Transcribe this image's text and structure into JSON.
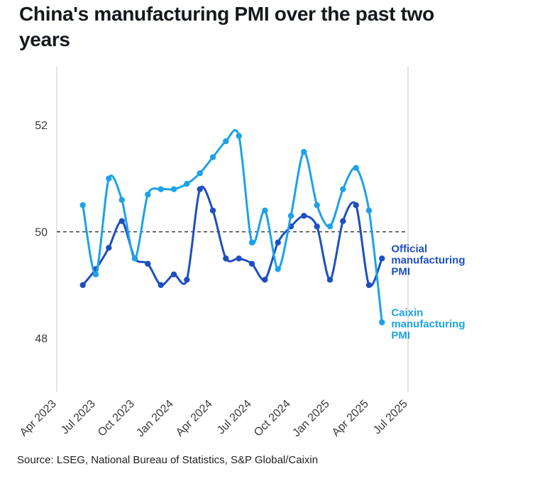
{
  "title": "China's manufacturing PMI over the past two years",
  "source": "Source: LSEG, National Bureau of Statistics, S&P Global/Caixin",
  "chart_data": {
    "type": "line",
    "title": "China's manufacturing PMI over the past two years",
    "grid": "off",
    "legend_position": "end-of-line-labels",
    "reference_line": 50,
    "x_axis": {
      "tick_labels": [
        "Apr 2023",
        "Jul 2023",
        "Oct 2023",
        "Jan 2024",
        "Apr 2024",
        "Jul 2024",
        "Oct 2024",
        "Jan 2025",
        "Apr 2025",
        "Jul 2025"
      ],
      "tick_interval_months": 3,
      "months_span": 27
    },
    "y_axis": {
      "ticks": [
        48,
        50,
        52
      ],
      "range": [
        47.0,
        53.1
      ]
    },
    "x_months": [
      "Jun 2023",
      "Jul 2023",
      "Aug 2023",
      "Sep 2023",
      "Oct 2023",
      "Nov 2023",
      "Dec 2023",
      "Jan 2024",
      "Feb 2024",
      "Mar 2024",
      "Apr 2024",
      "May 2024",
      "Jun 2024",
      "Jul 2024",
      "Aug 2024",
      "Sep 2024",
      "Oct 2024",
      "Nov 2024",
      "Dec 2024",
      "Jan 2025",
      "Feb 2025",
      "Mar 2025",
      "Apr 2025",
      "May 2025"
    ],
    "series": [
      {
        "id": "official",
        "name": "Official manufacturing PMI",
        "label_lines": [
          "Official",
          "manufacturing",
          "PMI"
        ],
        "color": "#1e4fc0",
        "start_month_index": 2,
        "values": [
          49.0,
          49.3,
          49.7,
          50.2,
          49.5,
          49.4,
          49.0,
          49.2,
          49.1,
          50.8,
          50.4,
          49.5,
          49.5,
          49.4,
          49.1,
          49.8,
          50.1,
          50.3,
          50.1,
          49.1,
          50.2,
          50.5,
          49.0,
          49.5
        ]
      },
      {
        "id": "caixin",
        "name": "Caixin manufacturing PMI",
        "label_lines": [
          "Caixin",
          "manufacturing",
          "PMI"
        ],
        "color": "#1da2e8",
        "start_month_index": 2,
        "values": [
          50.5,
          49.2,
          51.0,
          50.6,
          49.5,
          50.7,
          50.8,
          50.8,
          50.9,
          51.1,
          51.4,
          51.7,
          51.8,
          49.8,
          50.4,
          49.3,
          50.3,
          51.5,
          50.5,
          50.1,
          50.8,
          51.2,
          50.4,
          48.3
        ]
      }
    ]
  }
}
